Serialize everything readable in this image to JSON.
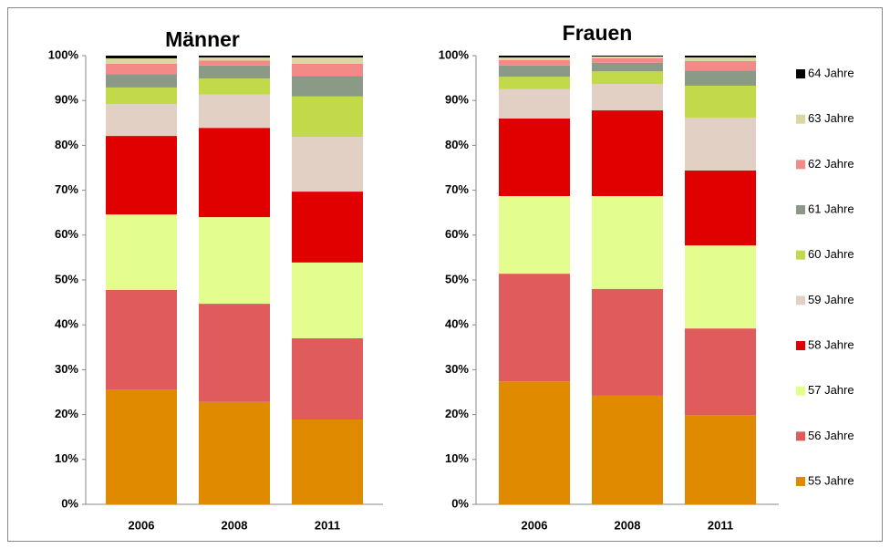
{
  "chart_data": [
    {
      "type": "bar",
      "stacked": true,
      "title": "Männer",
      "categories": [
        "2006",
        "2008",
        "2011"
      ],
      "ylim": [
        0,
        100
      ],
      "yticks": [
        {
          "value": 0,
          "label": "0%"
        },
        {
          "value": 10,
          "label": "10%"
        },
        {
          "value": 20,
          "label": "20%"
        },
        {
          "value": 30,
          "label": "30%"
        },
        {
          "value": 40,
          "label": "40%"
        },
        {
          "value": 50,
          "label": "50%"
        },
        {
          "value": 60,
          "label": "60%"
        },
        {
          "value": 70,
          "label": "70%"
        },
        {
          "value": 80,
          "label": "80%"
        },
        {
          "value": 90,
          "label": "90%"
        },
        {
          "value": 100,
          "label": "100%"
        }
      ],
      "series": [
        {
          "name": "55 Jahre",
          "color": "#e08a00",
          "values": [
            25.6,
            22.8,
            18.9
          ]
        },
        {
          "name": "56 Jahre",
          "color": "#e05c5c",
          "values": [
            22.2,
            21.9,
            18.1
          ]
        },
        {
          "name": "57 Jahre",
          "color": "#e4fd8f",
          "values": [
            16.8,
            19.3,
            16.9
          ]
        },
        {
          "name": "58 Jahre",
          "color": "#e00000",
          "values": [
            17.5,
            19.9,
            15.8
          ]
        },
        {
          "name": "59 Jahre",
          "color": "#e3d0c4",
          "values": [
            7.1,
            7.4,
            12.2
          ]
        },
        {
          "name": "60 Jahre",
          "color": "#c2d94a",
          "values": [
            3.7,
            3.6,
            9.0
          ]
        },
        {
          "name": "61 Jahre",
          "color": "#8a9a87",
          "values": [
            3.0,
            2.9,
            4.6
          ]
        },
        {
          "name": "62 Jahre",
          "color": "#f48a87",
          "values": [
            2.3,
            1.1,
            2.7
          ]
        },
        {
          "name": "63 Jahre",
          "color": "#dad8a0",
          "values": [
            1.2,
            0.7,
            1.4
          ]
        },
        {
          "name": "64 Jahre",
          "color": "#000000",
          "values": [
            0.6,
            0.4,
            0.4
          ]
        }
      ]
    },
    {
      "type": "bar",
      "stacked": true,
      "title": "Frauen",
      "legend": "right",
      "categories": [
        "2006",
        "2008",
        "2011"
      ],
      "ylim": [
        0,
        100
      ],
      "yticks": [
        {
          "value": 0,
          "label": "0%"
        },
        {
          "value": 10,
          "label": "10%"
        },
        {
          "value": 20,
          "label": "20%"
        },
        {
          "value": 30,
          "label": "30%"
        },
        {
          "value": 40,
          "label": "40%"
        },
        {
          "value": 50,
          "label": "50%"
        },
        {
          "value": 60,
          "label": "60%"
        },
        {
          "value": 70,
          "label": "70%"
        },
        {
          "value": 80,
          "label": "80%"
        },
        {
          "value": 90,
          "label": "90%"
        },
        {
          "value": 100,
          "label": "100%"
        }
      ],
      "series": [
        {
          "name": "55 Jahre",
          "color": "#e08a00",
          "values": [
            27.4,
            24.2,
            19.9
          ]
        },
        {
          "name": "56 Jahre",
          "color": "#e05c5c",
          "values": [
            24.0,
            23.8,
            19.3
          ]
        },
        {
          "name": "57 Jahre",
          "color": "#e4fd8f",
          "values": [
            17.3,
            20.7,
            18.5
          ]
        },
        {
          "name": "58 Jahre",
          "color": "#e00000",
          "values": [
            17.3,
            19.1,
            16.7
          ]
        },
        {
          "name": "59 Jahre",
          "color": "#e3d0c4",
          "values": [
            6.5,
            5.9,
            11.8
          ]
        },
        {
          "name": "60 Jahre",
          "color": "#c2d94a",
          "values": [
            2.8,
            2.8,
            7.1
          ]
        },
        {
          "name": "61 Jahre",
          "color": "#8a9a87",
          "values": [
            2.5,
            1.9,
            3.4
          ]
        },
        {
          "name": "62 Jahre",
          "color": "#f48a87",
          "values": [
            1.2,
            1.0,
            2.1
          ]
        },
        {
          "name": "63 Jahre",
          "color": "#dad8a0",
          "values": [
            0.6,
            0.4,
            0.8
          ]
        },
        {
          "name": "64 Jahre",
          "color": "#000000",
          "values": [
            0.4,
            0.2,
            0.4
          ]
        }
      ]
    }
  ]
}
